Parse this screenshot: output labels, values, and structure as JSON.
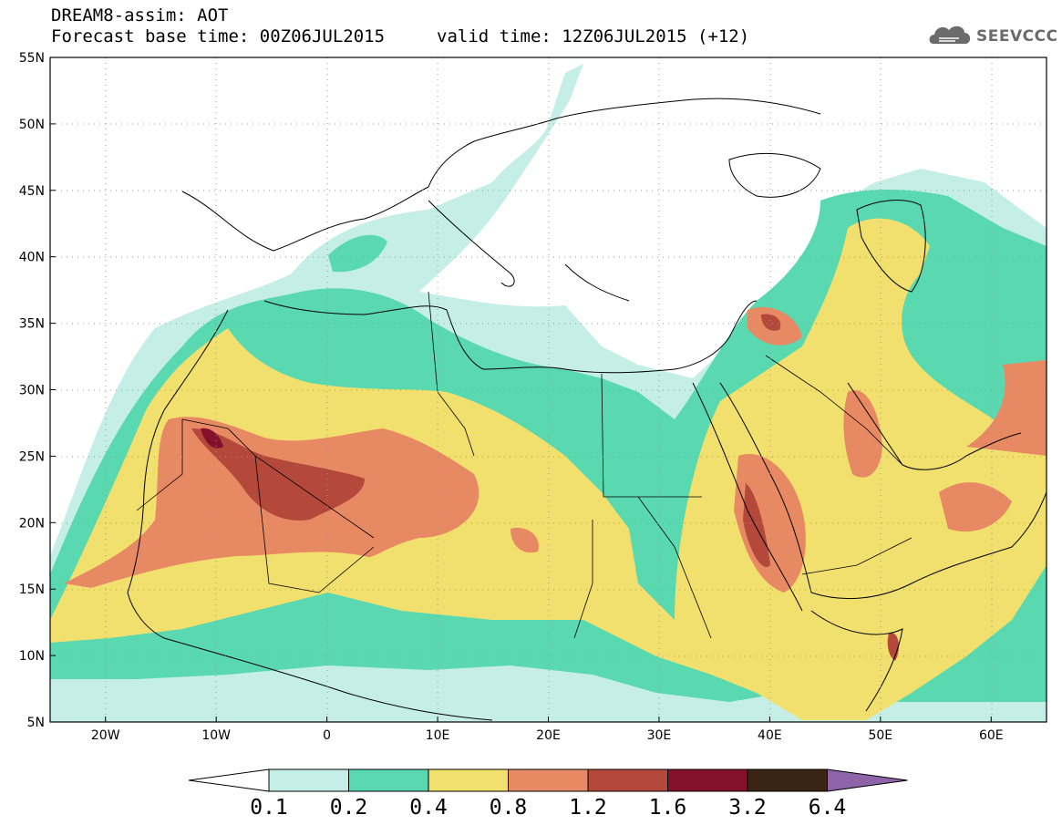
{
  "header": {
    "line1": "DREAM8-assim: AOT",
    "line2": "Forecast base time: 00Z06JUL2015",
    "line3": "valid time: 12Z06JUL2015 (+12)"
  },
  "logo": {
    "text": "SEEVCCC",
    "icon": "cloud-icon"
  },
  "map": {
    "lon_range": [
      -25,
      65
    ],
    "lat_range": [
      5,
      55
    ],
    "lat_labels": [
      "55N",
      "50N",
      "45N",
      "40N",
      "35N",
      "30N",
      "25N",
      "20N",
      "15N",
      "10N",
      "5N"
    ],
    "lon_labels": [
      "20W",
      "10W",
      "0",
      "10E",
      "20E",
      "30E",
      "40E",
      "50E",
      "60E"
    ]
  },
  "colorbar": {
    "levels": [
      "0.1",
      "0.2",
      "0.4",
      "0.8",
      "1.2",
      "1.6",
      "3.2",
      "6.4"
    ],
    "colors": [
      "#c4eee6",
      "#5ad8b0",
      "#f2e06e",
      "#e78a63",
      "#b4483a",
      "#84102b",
      "#3a2414",
      "#8f63a8"
    ],
    "under_color": "#ffffff"
  }
}
